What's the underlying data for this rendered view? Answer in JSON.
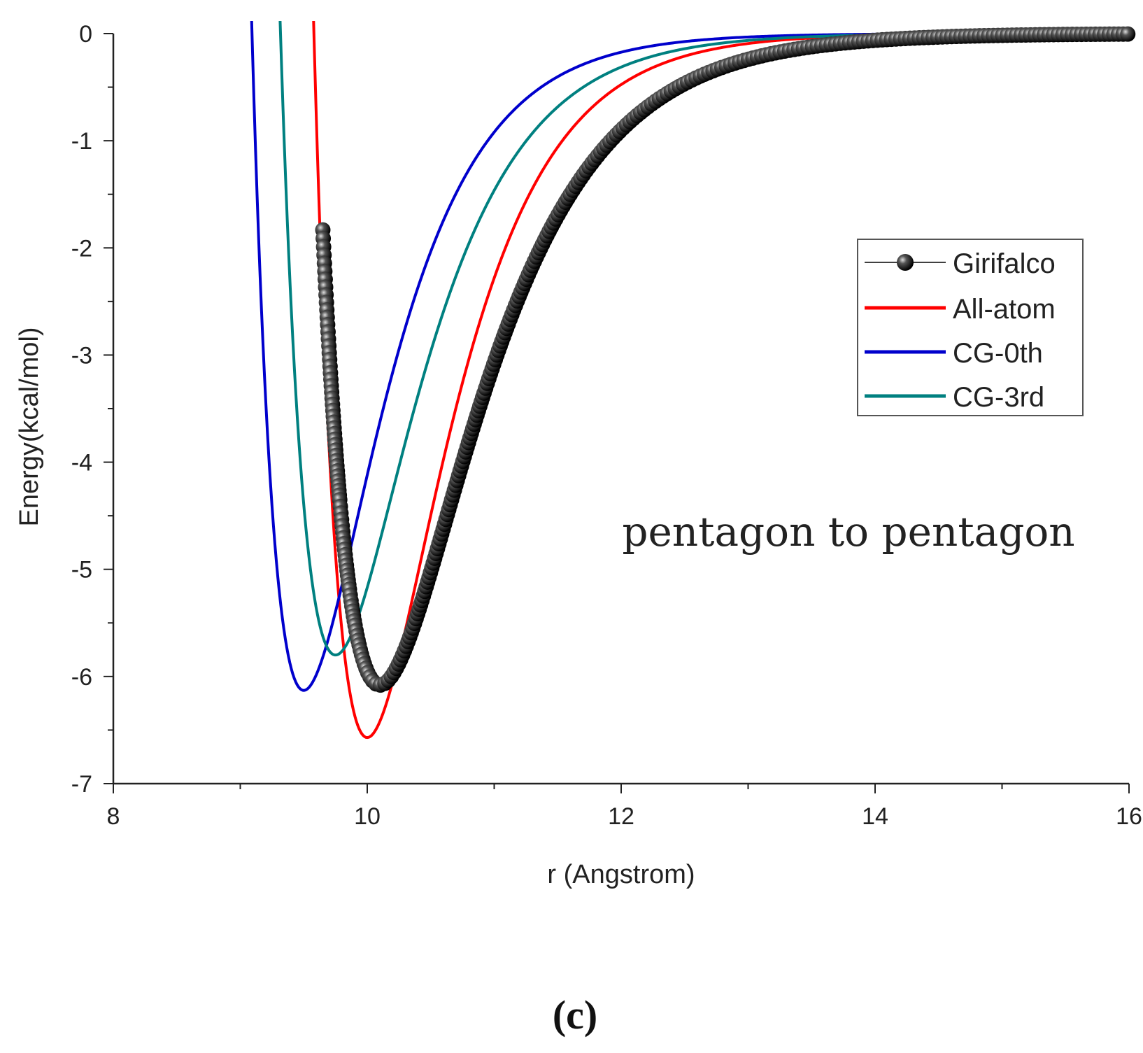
{
  "chart_data": {
    "type": "line",
    "title": "",
    "xlabel": "r (Angstrom)",
    "ylabel": "Energy(kcal/mol)",
    "xlim": [
      8,
      16
    ],
    "ylim": [
      -7,
      0
    ],
    "xticks": [
      "8",
      "10",
      "12",
      "14",
      "16"
    ],
    "yticks": [
      "0",
      "-1",
      "-2",
      "-3",
      "-4",
      "-5",
      "-6",
      "-7"
    ],
    "legend_position": "right",
    "annotation": "pentagon to pentagon",
    "panel_label": "(c)",
    "series": [
      {
        "name": "Girifalco",
        "color": "#000000",
        "marker": "sphere",
        "r_min": 10.1,
        "e_min": -6.08,
        "width_param": 1.35,
        "r_start": 9.65,
        "r_end": 16.0
      },
      {
        "name": "All-atom",
        "color": "#ff0000",
        "marker": "none",
        "r_min": 10.0,
        "e_min": -6.57,
        "width_param": 1.65,
        "r_start": 9.42,
        "r_end": 16.0
      },
      {
        "name": "CG-0th",
        "color": "#0000cc",
        "marker": "none",
        "r_min": 9.5,
        "e_min": -6.13,
        "width_param": 1.7,
        "r_start": 8.98,
        "r_end": 16.0
      },
      {
        "name": "CG-3rd",
        "color": "#008080",
        "marker": "none",
        "r_min": 9.75,
        "e_min": -5.8,
        "width_param": 1.6,
        "r_start": 9.2,
        "r_end": 16.0
      }
    ]
  }
}
